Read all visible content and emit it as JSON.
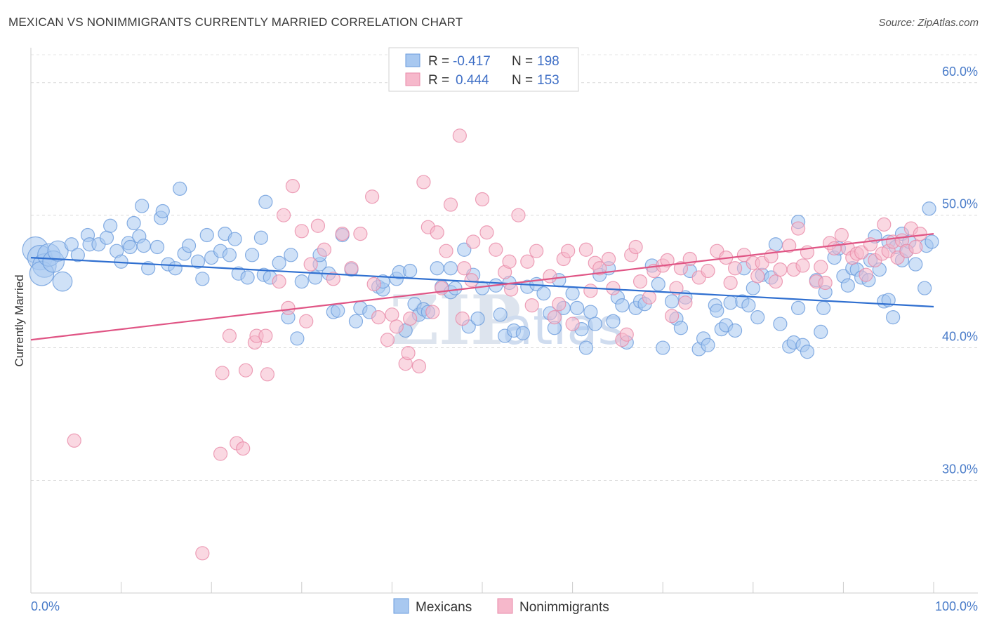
{
  "title": "MEXICAN VS NONIMMIGRANTS CURRENTLY MARRIED CORRELATION CHART",
  "source": "Source: ZipAtlas.com",
  "chart_data": {
    "type": "scatter",
    "ylabel": "Currently Married",
    "xlabel": "",
    "xlim": [
      0,
      100
    ],
    "ylim": [
      21.5,
      62
    ],
    "x_tick_labels": [
      "0.0%",
      "100.0%"
    ],
    "y_ticks": [
      30,
      40,
      50,
      60
    ],
    "y_tick_labels": [
      "30.0%",
      "40.0%",
      "50.0%",
      "60.0%"
    ],
    "grid": true,
    "legend_position": "bottom-center",
    "stats": [
      {
        "r_label": "R =",
        "r": "-0.417",
        "n_label": "N =",
        "n": "198"
      },
      {
        "r_label": "R =",
        "r": "0.444",
        "n_label": "N =",
        "n": "153"
      }
    ],
    "watermark": [
      "ZIP",
      "atlas"
    ],
    "series": [
      {
        "name": "Mexicans",
        "color": "#a8c8f0",
        "stroke": "#6a9bdc",
        "line_color": "#2f6fd0",
        "trend": {
          "x": [
            0,
            100
          ],
          "y": [
            46.8,
            43.1
          ]
        },
        "points": [
          [
            0.5,
            47.4
          ],
          [
            1,
            46.8
          ],
          [
            1.5,
            46.2
          ],
          [
            1.2,
            45.6
          ],
          [
            2,
            47.0
          ],
          [
            2.5,
            46.5
          ],
          [
            3,
            47.3
          ],
          [
            3.5,
            45.0
          ],
          [
            4.5,
            47.8
          ],
          [
            5.2,
            47.0
          ],
          [
            6.3,
            48.5
          ],
          [
            6.5,
            47.8
          ],
          [
            7.5,
            47.8
          ],
          [
            8.4,
            48.3
          ],
          [
            8.8,
            49.2
          ],
          [
            9.5,
            47.3
          ],
          [
            10,
            46.5
          ],
          [
            10.8,
            47.9
          ],
          [
            11,
            47.6
          ],
          [
            11.4,
            49.4
          ],
          [
            12,
            48.4
          ],
          [
            12.3,
            50.7
          ],
          [
            12.5,
            47.7
          ],
          [
            13,
            46.0
          ],
          [
            14,
            47.6
          ],
          [
            14.4,
            49.8
          ],
          [
            14.6,
            50.3
          ],
          [
            15.2,
            46.3
          ],
          [
            16,
            46.0
          ],
          [
            16.5,
            52.0
          ],
          [
            17,
            47.1
          ],
          [
            17.5,
            47.7
          ],
          [
            18.5,
            46.5
          ],
          [
            19,
            45.2
          ],
          [
            19.5,
            48.5
          ],
          [
            20,
            46.8
          ],
          [
            21,
            47.3
          ],
          [
            21.5,
            48.6
          ],
          [
            22,
            47.0
          ],
          [
            22.6,
            48.2
          ],
          [
            23,
            45.6
          ],
          [
            24,
            45.3
          ],
          [
            24.5,
            47.0
          ],
          [
            25.5,
            48.3
          ],
          [
            25.8,
            45.5
          ],
          [
            26,
            51.0
          ],
          [
            26.5,
            45.3
          ],
          [
            27.5,
            46.4
          ],
          [
            28.5,
            42.3
          ],
          [
            28.8,
            47.0
          ],
          [
            29.5,
            40.7
          ],
          [
            30,
            45.0
          ],
          [
            31.5,
            45.3
          ],
          [
            32,
            46.3
          ],
          [
            32,
            47.0
          ],
          [
            33,
            45.6
          ],
          [
            33.5,
            42.7
          ],
          [
            34,
            42.8
          ],
          [
            34.5,
            48.5
          ],
          [
            35.5,
            45.9
          ],
          [
            36,
            42.0
          ],
          [
            36.5,
            43.0
          ],
          [
            37.5,
            42.7
          ],
          [
            38.5,
            44.6
          ],
          [
            39,
            44.4
          ],
          [
            39,
            45.0
          ],
          [
            40.5,
            45.2
          ],
          [
            40.8,
            45.7
          ],
          [
            41.5,
            41.3
          ],
          [
            42,
            45.8
          ],
          [
            42.5,
            43.3
          ],
          [
            43,
            42.5
          ],
          [
            43.5,
            42.9
          ],
          [
            44,
            42.7
          ],
          [
            45,
            46.0
          ],
          [
            45.5,
            44.6
          ],
          [
            46.5,
            46.0
          ],
          [
            46.5,
            44.2
          ],
          [
            47,
            44.5
          ],
          [
            48,
            47.4
          ],
          [
            48.5,
            41.6
          ],
          [
            49,
            45.5
          ],
          [
            49.5,
            42.2
          ],
          [
            50,
            44.5
          ],
          [
            51.5,
            44.7
          ],
          [
            52,
            42.5
          ],
          [
            52.5,
            40.9
          ],
          [
            53,
            44.9
          ],
          [
            53.5,
            41.3
          ],
          [
            54.5,
            41.1
          ],
          [
            55,
            44.6
          ],
          [
            56,
            44.8
          ],
          [
            56.8,
            44.1
          ],
          [
            57.5,
            42.6
          ],
          [
            58,
            41.5
          ],
          [
            58.5,
            45.1
          ],
          [
            59,
            43.0
          ],
          [
            60,
            44.1
          ],
          [
            60.5,
            43.0
          ],
          [
            61,
            41.4
          ],
          [
            61.5,
            40.0
          ],
          [
            62,
            42.7
          ],
          [
            62.5,
            41.8
          ],
          [
            63,
            45.5
          ],
          [
            64,
            46.0
          ],
          [
            64.5,
            42.0
          ],
          [
            65,
            43.8
          ],
          [
            65.5,
            43.2
          ],
          [
            66,
            40.4
          ],
          [
            67,
            43.0
          ],
          [
            67.5,
            43.5
          ],
          [
            68,
            43.3
          ],
          [
            68.8,
            46.2
          ],
          [
            69.5,
            44.8
          ],
          [
            70,
            40.0
          ],
          [
            71,
            43.5
          ],
          [
            71.5,
            42.2
          ],
          [
            72,
            41.5
          ],
          [
            72.5,
            43.8
          ],
          [
            73,
            45.8
          ],
          [
            74,
            39.9
          ],
          [
            74.5,
            40.7
          ],
          [
            75,
            40.2
          ],
          [
            75.8,
            43.2
          ],
          [
            76,
            42.8
          ],
          [
            76.5,
            41.4
          ],
          [
            77,
            41.7
          ],
          [
            77.5,
            43.4
          ],
          [
            78,
            41.3
          ],
          [
            78.8,
            43.5
          ],
          [
            79,
            46.0
          ],
          [
            79.5,
            43.2
          ],
          [
            80,
            44.5
          ],
          [
            80.5,
            42.3
          ],
          [
            81,
            45.5
          ],
          [
            82,
            45.3
          ],
          [
            82.5,
            47.8
          ],
          [
            83,
            41.8
          ],
          [
            84,
            40.1
          ],
          [
            84.5,
            40.4
          ],
          [
            85,
            43.0
          ],
          [
            85,
            49.5
          ],
          [
            85.5,
            40.2
          ],
          [
            86,
            39.7
          ],
          [
            87,
            45.1
          ],
          [
            87.5,
            41.2
          ],
          [
            87.8,
            43.0
          ],
          [
            88,
            44.2
          ],
          [
            89,
            46.8
          ],
          [
            89.5,
            47.5
          ],
          [
            90,
            45.4
          ],
          [
            90.5,
            44.7
          ],
          [
            91,
            46.0
          ],
          [
            91.5,
            45.9
          ],
          [
            92,
            45.3
          ],
          [
            92.8,
            45.1
          ],
          [
            93,
            46.6
          ],
          [
            93.5,
            48.4
          ],
          [
            94,
            45.9
          ],
          [
            94.5,
            43.5
          ],
          [
            95,
            43.6
          ],
          [
            95,
            48.0
          ],
          [
            95.5,
            42.3
          ],
          [
            95.8,
            47.6
          ],
          [
            96.5,
            46.6
          ],
          [
            96.5,
            48.6
          ],
          [
            97,
            47.3
          ],
          [
            97.3,
            48.0
          ],
          [
            98,
            46.3
          ],
          [
            99,
            44.5
          ],
          [
            99.2,
            47.7
          ],
          [
            99.5,
            50.5
          ],
          [
            99.8,
            48.0
          ]
        ]
      },
      {
        "name": "Nonimmigrants",
        "color": "#f6b8cb",
        "stroke": "#e88aa8",
        "line_color": "#e05585",
        "trend": {
          "x": [
            0,
            100
          ],
          "y": [
            40.6,
            48.6
          ]
        },
        "points": [
          [
            4.8,
            33.0
          ],
          [
            19,
            24.5
          ],
          [
            21,
            32.0
          ],
          [
            21.2,
            38.1
          ],
          [
            22,
            40.9
          ],
          [
            22.8,
            32.8
          ],
          [
            23.5,
            32.4
          ],
          [
            23.8,
            38.3
          ],
          [
            24.8,
            40.4
          ],
          [
            25,
            40.9
          ],
          [
            26,
            40.9
          ],
          [
            26.2,
            38.0
          ],
          [
            27.5,
            45.0
          ],
          [
            28,
            50.0
          ],
          [
            28.5,
            43.0
          ],
          [
            29,
            52.2
          ],
          [
            30,
            48.8
          ],
          [
            30.5,
            42.0
          ],
          [
            31,
            46.3
          ],
          [
            31.8,
            49.2
          ],
          [
            32.5,
            47.4
          ],
          [
            33.5,
            45.2
          ],
          [
            34.5,
            48.6
          ],
          [
            35.5,
            46.0
          ],
          [
            36.5,
            48.6
          ],
          [
            37.8,
            51.4
          ],
          [
            38,
            44.8
          ],
          [
            38.5,
            42.3
          ],
          [
            39.5,
            40.6
          ],
          [
            40,
            42.5
          ],
          [
            40.5,
            41.6
          ],
          [
            41.5,
            38.8
          ],
          [
            41.8,
            39.6
          ],
          [
            42,
            42.2
          ],
          [
            43,
            38.6
          ],
          [
            43.5,
            52.5
          ],
          [
            44,
            49.1
          ],
          [
            44.5,
            42.7
          ],
          [
            45,
            48.7
          ],
          [
            45.5,
            44.5
          ],
          [
            46,
            47.3
          ],
          [
            46.5,
            50.8
          ],
          [
            47.5,
            56.0
          ],
          [
            47.8,
            42.2
          ],
          [
            48,
            46.0
          ],
          [
            48.8,
            45.1
          ],
          [
            49,
            48.0
          ],
          [
            50,
            51.2
          ],
          [
            50.5,
            48.7
          ],
          [
            51.5,
            47.4
          ],
          [
            52.5,
            45.7
          ],
          [
            53,
            46.5
          ],
          [
            53.2,
            44.4
          ],
          [
            54,
            50.0
          ],
          [
            55,
            46.5
          ],
          [
            55.5,
            43.2
          ],
          [
            56,
            47.3
          ],
          [
            57.5,
            45.4
          ],
          [
            58,
            42.3
          ],
          [
            58.5,
            43.3
          ],
          [
            59,
            46.7
          ],
          [
            59.5,
            47.3
          ],
          [
            60,
            41.8
          ],
          [
            61.5,
            47.4
          ],
          [
            62,
            44.3
          ],
          [
            62.5,
            46.4
          ],
          [
            63,
            46.0
          ],
          [
            64,
            46.7
          ],
          [
            64.5,
            44.5
          ],
          [
            65.5,
            40.6
          ],
          [
            66,
            41.0
          ],
          [
            66.5,
            47.0
          ],
          [
            67,
            47.6
          ],
          [
            67.5,
            45.0
          ],
          [
            68.5,
            43.8
          ],
          [
            69,
            45.8
          ],
          [
            70,
            46.2
          ],
          [
            70.5,
            46.6
          ],
          [
            71,
            42.4
          ],
          [
            71.5,
            44.5
          ],
          [
            72,
            46.0
          ],
          [
            72.5,
            43.4
          ],
          [
            73,
            46.7
          ],
          [
            74,
            45.3
          ],
          [
            75,
            45.8
          ],
          [
            76,
            47.3
          ],
          [
            77,
            46.8
          ],
          [
            77.5,
            44.9
          ],
          [
            78,
            46.0
          ],
          [
            79,
            47.0
          ],
          [
            80,
            46.4
          ],
          [
            80.5,
            45.4
          ],
          [
            81,
            46.4
          ],
          [
            82,
            46.9
          ],
          [
            82.5,
            45.0
          ],
          [
            83,
            45.9
          ],
          [
            84,
            47.7
          ],
          [
            84.5,
            45.9
          ],
          [
            85,
            49.0
          ],
          [
            85.5,
            46.2
          ],
          [
            86,
            47.2
          ],
          [
            87,
            45.0
          ],
          [
            87.5,
            46.1
          ],
          [
            88,
            44.9
          ],
          [
            88.5,
            47.9
          ],
          [
            89,
            47.5
          ],
          [
            89.8,
            48.5
          ],
          [
            90.5,
            47.5
          ],
          [
            91,
            46.8
          ],
          [
            91.5,
            47.1
          ],
          [
            92,
            47.2
          ],
          [
            92.5,
            45.5
          ],
          [
            93,
            47.8
          ],
          [
            93.5,
            46.6
          ],
          [
            94.3,
            47.1
          ],
          [
            94.5,
            49.3
          ],
          [
            95,
            47.3
          ],
          [
            95.5,
            48.0
          ],
          [
            96,
            46.8
          ],
          [
            96.5,
            48.1
          ],
          [
            97,
            47.3
          ],
          [
            97.5,
            49.0
          ],
          [
            98,
            47.6
          ],
          [
            98.5,
            48.6
          ]
        ]
      }
    ]
  }
}
